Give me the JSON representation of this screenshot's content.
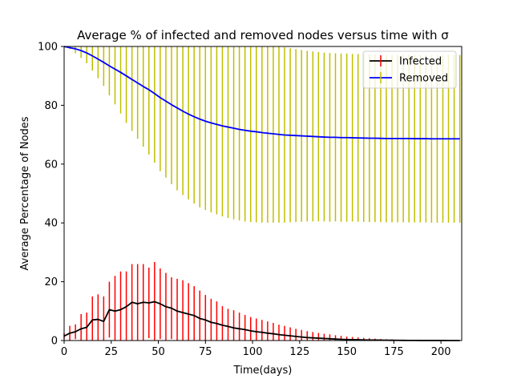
{
  "chart_data": {
    "type": "line",
    "title": "Average % of infected and removed nodes versus time with σ",
    "xlabel": "Time(days)",
    "ylabel": "Average Percentage of Nodes",
    "xlim": [
      0,
      211
    ],
    "ylim": [
      0,
      100
    ],
    "xticks": [
      0,
      25,
      50,
      75,
      100,
      125,
      150,
      175,
      200
    ],
    "yticks": [
      0,
      20,
      40,
      60,
      80,
      100
    ],
    "grid": false,
    "legend": {
      "placement": "top-right",
      "entries": [
        "Infected",
        "Removed"
      ]
    },
    "series": [
      {
        "name": "Infected",
        "color": "#000000",
        "errorbar_color": "#ff0000",
        "x": [
          0,
          3,
          6,
          9,
          12,
          15,
          18,
          21,
          24,
          27,
          30,
          33,
          36,
          39,
          42,
          45,
          48,
          51,
          54,
          57,
          60,
          63,
          66,
          69,
          72,
          75,
          78,
          81,
          84,
          87,
          90,
          93,
          96,
          99,
          102,
          105,
          108,
          111,
          114,
          117,
          120,
          123,
          126,
          129,
          132,
          135,
          138,
          141,
          144,
          147,
          150,
          153,
          156,
          159,
          162,
          165,
          168,
          171,
          174,
          177,
          180,
          183,
          186,
          189,
          192,
          195,
          198,
          201,
          204,
          207,
          210
        ],
        "y": [
          1.5,
          2.5,
          3.0,
          4.0,
          4.5,
          7.0,
          7.2,
          6.5,
          10.5,
          10.0,
          10.5,
          11.5,
          13.0,
          12.5,
          13.0,
          12.8,
          13.2,
          12.5,
          11.5,
          11.0,
          10.0,
          9.5,
          9.0,
          8.5,
          7.5,
          7.0,
          6.2,
          5.8,
          5.2,
          4.8,
          4.3,
          4.0,
          3.7,
          3.3,
          3.0,
          2.8,
          2.5,
          2.3,
          2.0,
          1.8,
          1.6,
          1.4,
          1.2,
          1.0,
          0.9,
          0.8,
          0.7,
          0.6,
          0.5,
          0.4,
          0.35,
          0.3,
          0.25,
          0.2,
          0.18,
          0.15,
          0.12,
          0.1,
          0.08,
          0.06,
          0.05,
          0.04,
          0.03,
          0.02,
          0.02,
          0.01,
          0.01,
          0.01,
          0.0,
          0.0,
          0.0
        ],
        "err": [
          1.0,
          2.5,
          2.5,
          5.0,
          5.0,
          8.0,
          8.5,
          8.5,
          9.5,
          12.0,
          13.0,
          12.0,
          13.0,
          13.5,
          13.0,
          12.0,
          13.5,
          12.0,
          11.5,
          10.5,
          11.0,
          11.0,
          10.5,
          10.0,
          9.5,
          8.5,
          8.0,
          7.5,
          6.5,
          6.0,
          6.0,
          5.5,
          5.0,
          4.7,
          4.5,
          4.2,
          4.0,
          3.7,
          3.4,
          3.2,
          2.9,
          2.6,
          2.4,
          2.2,
          2.0,
          1.8,
          1.6,
          1.5,
          1.3,
          1.2,
          1.0,
          0.9,
          0.8,
          0.7,
          0.6,
          0.5,
          0.4,
          0.35,
          0.3,
          0.25,
          0.2,
          0.15,
          0.12,
          0.1,
          0.08,
          0.06,
          0.05,
          0.04,
          0.03,
          0.02,
          0.02
        ]
      },
      {
        "name": "Removed",
        "color": "#0000ff",
        "errorbar_color": "#bfbf00",
        "x": [
          0,
          3,
          6,
          9,
          12,
          15,
          18,
          21,
          24,
          27,
          30,
          33,
          36,
          39,
          42,
          45,
          48,
          51,
          54,
          57,
          60,
          63,
          66,
          69,
          72,
          75,
          78,
          81,
          84,
          87,
          90,
          93,
          96,
          99,
          102,
          105,
          108,
          111,
          114,
          117,
          120,
          123,
          126,
          129,
          132,
          135,
          138,
          141,
          144,
          147,
          150,
          153,
          156,
          159,
          162,
          165,
          168,
          171,
          174,
          177,
          180,
          183,
          186,
          189,
          192,
          195,
          198,
          201,
          204,
          207,
          210
        ],
        "y": [
          100.0,
          99.6,
          99.2,
          98.6,
          97.8,
          96.8,
          95.7,
          94.6,
          93.4,
          92.3,
          91.2,
          90.0,
          88.8,
          87.6,
          86.4,
          85.3,
          84.0,
          82.6,
          81.4,
          80.2,
          79.1,
          78.0,
          77.0,
          76.1,
          75.3,
          74.6,
          74.0,
          73.5,
          73.0,
          72.6,
          72.2,
          71.8,
          71.5,
          71.2,
          71.0,
          70.7,
          70.5,
          70.3,
          70.1,
          69.9,
          69.8,
          69.7,
          69.6,
          69.5,
          69.4,
          69.3,
          69.2,
          69.1,
          69.1,
          69.0,
          69.0,
          68.95,
          68.9,
          68.85,
          68.8,
          68.8,
          68.75,
          68.7,
          68.7,
          68.7,
          68.7,
          68.7,
          68.65,
          68.65,
          68.65,
          68.6,
          68.6,
          68.6,
          68.6,
          68.6,
          68.6
        ],
        "err": [
          0.0,
          0.5,
          1.5,
          2.5,
          3.5,
          5.0,
          6.5,
          8.0,
          10.0,
          12.0,
          14.0,
          16.0,
          17.5,
          19.0,
          20.5,
          22.0,
          23.5,
          25.0,
          26.0,
          27.0,
          28.0,
          28.5,
          29.0,
          29.5,
          30.0,
          30.2,
          30.4,
          30.6,
          30.8,
          30.9,
          31.0,
          31.0,
          31.0,
          30.9,
          30.8,
          30.6,
          30.4,
          30.2,
          30.0,
          29.8,
          29.6,
          29.4,
          29.2,
          29.0,
          28.9,
          28.8,
          28.7,
          28.7,
          28.6,
          28.6,
          28.6,
          28.5,
          28.5,
          28.5,
          28.5,
          28.5,
          28.5,
          28.5,
          28.5,
          28.5,
          28.5,
          28.5,
          28.5,
          28.5,
          28.5,
          28.5,
          28.5,
          28.5,
          28.5,
          28.5,
          28.5
        ]
      }
    ]
  }
}
